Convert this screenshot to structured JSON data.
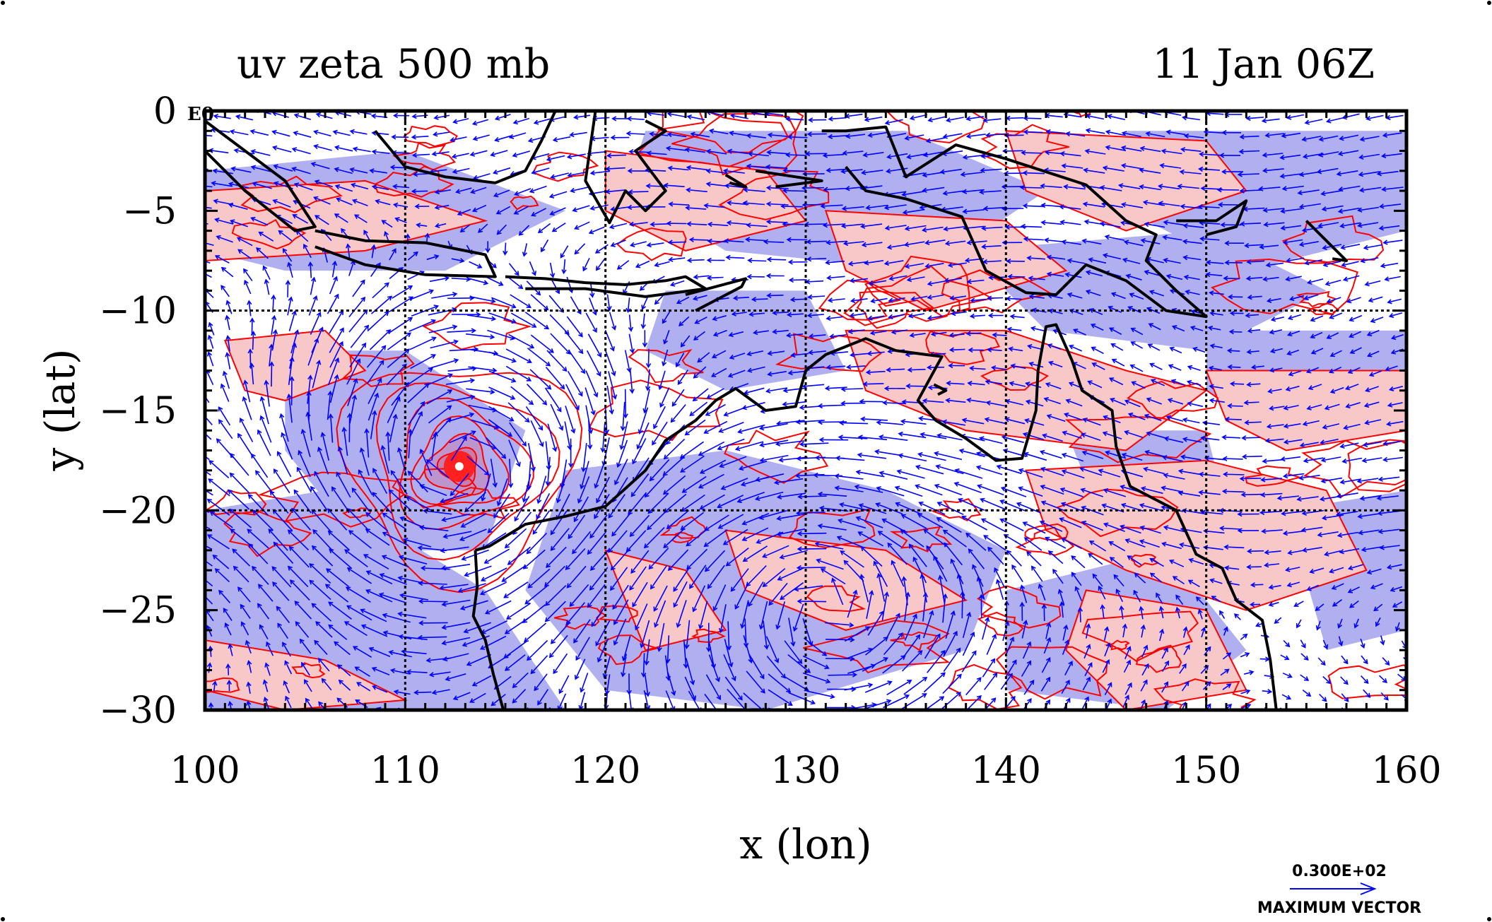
{
  "title_left": "uv zeta 500 mb",
  "title_right": "11 Jan 06Z",
  "x_axis_label": "x (lon)",
  "y_axis_label": "y (lat)",
  "corner_label": "E0",
  "x_ticks": [
    "100",
    "110",
    "120",
    "130",
    "140",
    "150",
    "160"
  ],
  "y_ticks": [
    "0",
    "−5",
    "−10",
    "−15",
    "−20",
    "−25",
    "−30"
  ],
  "legend": {
    "value_label": "0.300E+02",
    "caption": "MAXIMUM VECTOR"
  },
  "colors": {
    "positive_fill": "#f8c8c8",
    "positive_contour": "#ff0000",
    "negative_fill": "#b0b0f0",
    "wind_vector": "#0000ff",
    "coastline": "#000000",
    "grid": "#000000"
  },
  "map_data": {
    "type": "vector_field_with_shaded_contours",
    "field": "500 mb wind (u,v) and relative vorticity (zeta)",
    "projection": "lon-lat",
    "lon_range": [
      100,
      160
    ],
    "lat_range": [
      -30,
      0
    ],
    "grid_interval_deg": 10,
    "features": [
      {
        "name": "cyclone_center",
        "lon": 112.7,
        "lat": -17.8
      },
      {
        "name": "anticyclone_center",
        "lon": 131,
        "lat": -25
      }
    ]
  }
}
